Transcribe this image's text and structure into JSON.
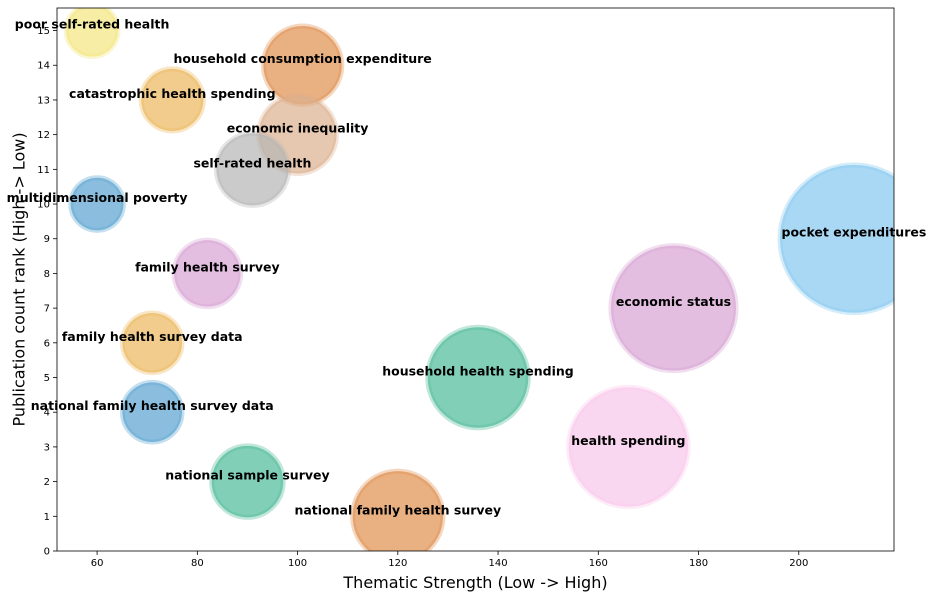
{
  "chart_data": {
    "type": "scatter",
    "xlabel": "Thematic Strength (Low -> High)",
    "ylabel": "Publication count rank (High -> Low)",
    "xlim": [
      52,
      219
    ],
    "ylim": [
      0,
      15.65
    ],
    "x_ticks": [
      60,
      80,
      100,
      120,
      140,
      160,
      180,
      200
    ],
    "y_ticks": [
      0,
      1,
      2,
      3,
      4,
      5,
      6,
      7,
      8,
      9,
      10,
      11,
      12,
      13,
      14,
      15
    ],
    "grid": false,
    "points": [
      {
        "label": "poor self-rated health",
        "x": 59,
        "y": 15,
        "color": "#f3e57d"
      },
      {
        "label": "household consumption expenditure",
        "x": 101,
        "y": 14,
        "color": "#e08e4d"
      },
      {
        "label": "catastrophic health spending",
        "x": 75,
        "y": 13,
        "color": "#ecb75b"
      },
      {
        "label": "economic inequality",
        "x": 100,
        "y": 12,
        "color": "#dcb08e"
      },
      {
        "label": "self-rated health",
        "x": 91,
        "y": 11,
        "color": "#b5b5b5"
      },
      {
        "label": "multidimensional poverty",
        "x": 60,
        "y": 10,
        "color": "#5aa2d0"
      },
      {
        "label": "pocket expenditures",
        "x": 211,
        "y": 9,
        "color": "#85c8ef"
      },
      {
        "label": "family health survey",
        "x": 82,
        "y": 8,
        "color": "#d7a3d4"
      },
      {
        "label": "economic status",
        "x": 175,
        "y": 7,
        "color": "#d7a3d4"
      },
      {
        "label": "family health survey data",
        "x": 71,
        "y": 6,
        "color": "#ecb75b"
      },
      {
        "label": "household health spending",
        "x": 136,
        "y": 5,
        "color": "#4dbb98"
      },
      {
        "label": "national family health survey data",
        "x": 71,
        "y": 4,
        "color": "#5aa2d0"
      },
      {
        "label": "health spending",
        "x": 166,
        "y": 3,
        "color": "#f8c6ea"
      },
      {
        "label": "national sample survey",
        "x": 90,
        "y": 2,
        "color": "#4dbb98"
      },
      {
        "label": "national family health survey",
        "x": 120,
        "y": 1,
        "color": "#e08e4d"
      }
    ]
  }
}
